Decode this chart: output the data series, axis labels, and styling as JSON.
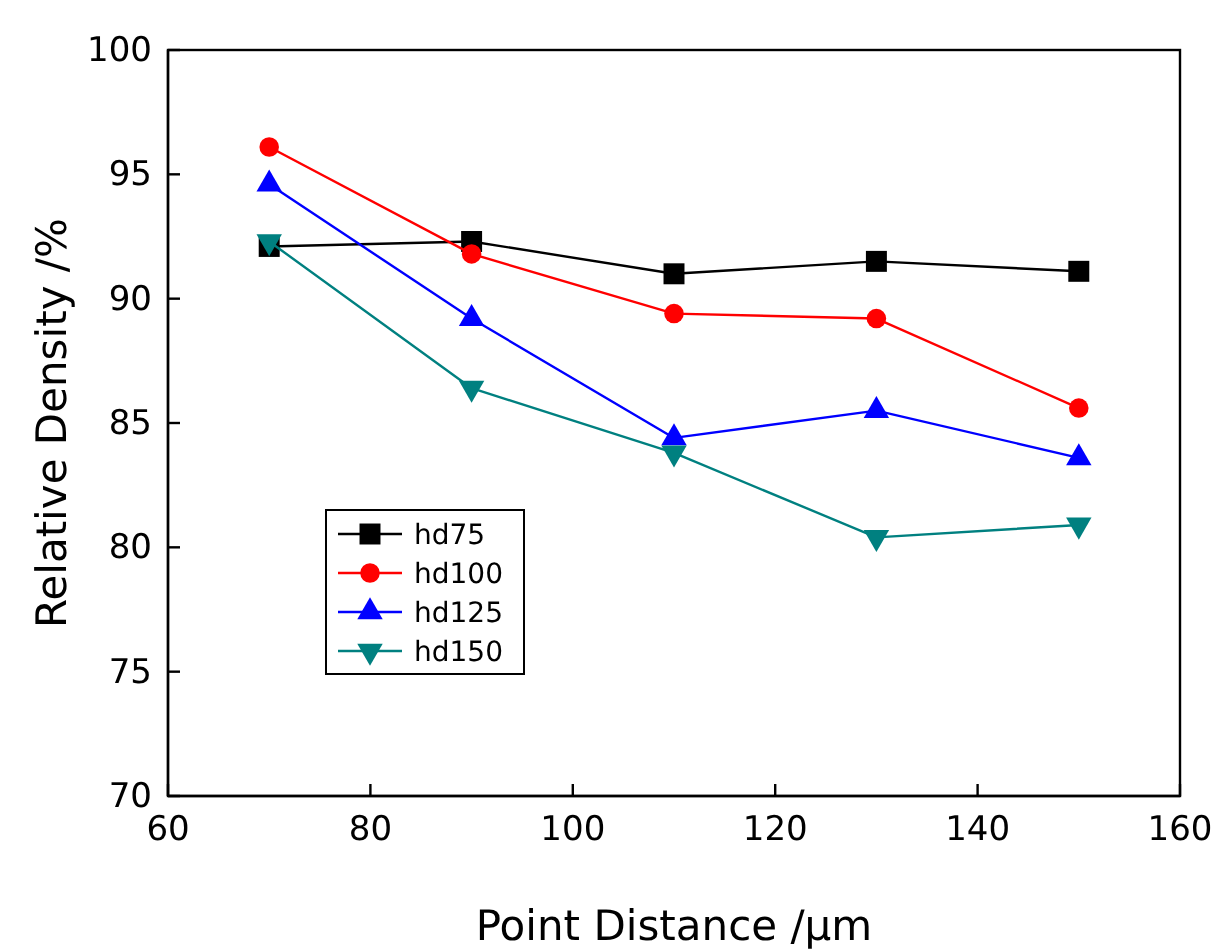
{
  "chart_data": {
    "type": "line",
    "xlabel": "Point Distance /µm",
    "ylabel": "Relative Density /%",
    "x": [
      70,
      90,
      110,
      130,
      150
    ],
    "xlim": [
      60,
      160
    ],
    "xticks": [
      60,
      80,
      100,
      120,
      140,
      160
    ],
    "ylim": [
      70,
      100
    ],
    "yticks": [
      70,
      75,
      80,
      85,
      90,
      95,
      100
    ],
    "legend": "bottom left",
    "grid": false,
    "series": [
      {
        "name": "hd75",
        "color": "#000000",
        "marker": "square",
        "values": [
          92.1,
          92.3,
          91.0,
          91.5,
          91.1
        ]
      },
      {
        "name": "hd100",
        "color": "#ff0000",
        "marker": "circle",
        "values": [
          96.1,
          91.8,
          89.4,
          89.2,
          85.6
        ]
      },
      {
        "name": "hd125",
        "color": "#0000ff",
        "marker": "triangle",
        "values": [
          94.6,
          89.2,
          84.4,
          85.5,
          83.6
        ]
      },
      {
        "name": "hd150",
        "color": "#008080",
        "marker": "triangle-down",
        "values": [
          92.3,
          86.4,
          83.8,
          80.4,
          80.9
        ]
      }
    ]
  }
}
